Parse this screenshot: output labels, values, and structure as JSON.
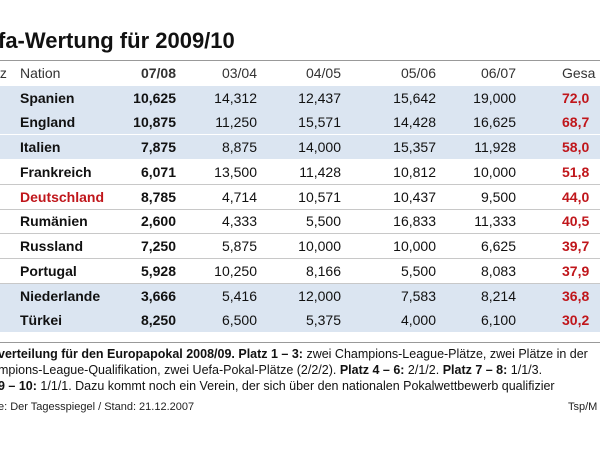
{
  "title": "fa-Wertung für 2009/10",
  "columns": {
    "platz": "tz",
    "nation": "Nation",
    "y0708": "07/08",
    "y0304": "03/04",
    "y0405": "04/05",
    "y0506": "05/06",
    "y0607": "06/07",
    "gesamt": "Gesa"
  },
  "rows": [
    {
      "nation": "Spanien",
      "y0708": "10,625",
      "y0304": "14,312",
      "y0405": "12,437",
      "y0506": "15,642",
      "y0607": "19,000",
      "gesamt": "72,0"
    },
    {
      "nation": "England",
      "y0708": "10,875",
      "y0304": "11,250",
      "y0405": "15,571",
      "y0506": "14,428",
      "y0607": "16,625",
      "gesamt": "68,7"
    },
    {
      "nation": "Italien",
      "y0708": "7,875",
      "y0304": "8,875",
      "y0405": "14,000",
      "y0506": "15,357",
      "y0607": "11,928",
      "gesamt": "58,0"
    },
    {
      "nation": "Frankreich",
      "y0708": "6,071",
      "y0304": "13,500",
      "y0405": "11,428",
      "y0506": "10,812",
      "y0607": "10,000",
      "gesamt": "51,8"
    },
    {
      "nation": "Deutschland",
      "y0708": "8,785",
      "y0304": "4,714",
      "y0405": "10,571",
      "y0506": "10,437",
      "y0607": "9,500",
      "gesamt": "44,0"
    },
    {
      "nation": "Rumänien",
      "y0708": "2,600",
      "y0304": "4,333",
      "y0405": "5,500",
      "y0506": "16,833",
      "y0607": "11,333",
      "gesamt": "40,5"
    },
    {
      "nation": "Russland",
      "y0708": "7,250",
      "y0304": "5,875",
      "y0405": "10,000",
      "y0506": "10,000",
      "y0607": "6,625",
      "gesamt": "39,7"
    },
    {
      "nation": "Portugal",
      "y0708": "5,928",
      "y0304": "10,250",
      "y0405": "8,166",
      "y0506": "5,500",
      "y0607": "8,083",
      "gesamt": "37,9"
    },
    {
      "nation": "Niederlande",
      "y0708": "3,666",
      "y0304": "5,416",
      "y0405": "12,000",
      "y0506": "7,583",
      "y0607": "8,214",
      "gesamt": "36,8"
    },
    {
      "nation": "Türkei",
      "y0708": "8,250",
      "y0304": "6,500",
      "y0405": "5,375",
      "y0506": "4,000",
      "y0607": "6,100",
      "gesamt": "30,2"
    }
  ],
  "footnote": {
    "line1_bold": "verteilung für den Europapokal 2008/09. Platz 1 – 3:",
    "line1_rest": " zwei Champions-League-Plätze, zwei Plätze in der",
    "line2_a": "mpions-League-Qualifikation, zwei Uefa-Pokal-Plätze (2/2/2). ",
    "line2_b_bold": "Platz 4 – 6:",
    "line2_c": " 2/1/2. ",
    "line2_d_bold": "Platz 7 – 8:",
    "line2_e": " 1/1/3.",
    "line3_bold": "9 – 10:",
    "line3_rest": " 1/1/1. Dazu kommt noch ein Verein, der sich über den nationalen Pokalwettbewerb qualifizier"
  },
  "source": "e: Der Tagesspiegel / Stand: 21.12.2007",
  "credit": "Tsp/M",
  "colors": {
    "shade": "#dbe5f1",
    "accent_red": "#c0161b",
    "highlight_nation": "Deutschland"
  }
}
